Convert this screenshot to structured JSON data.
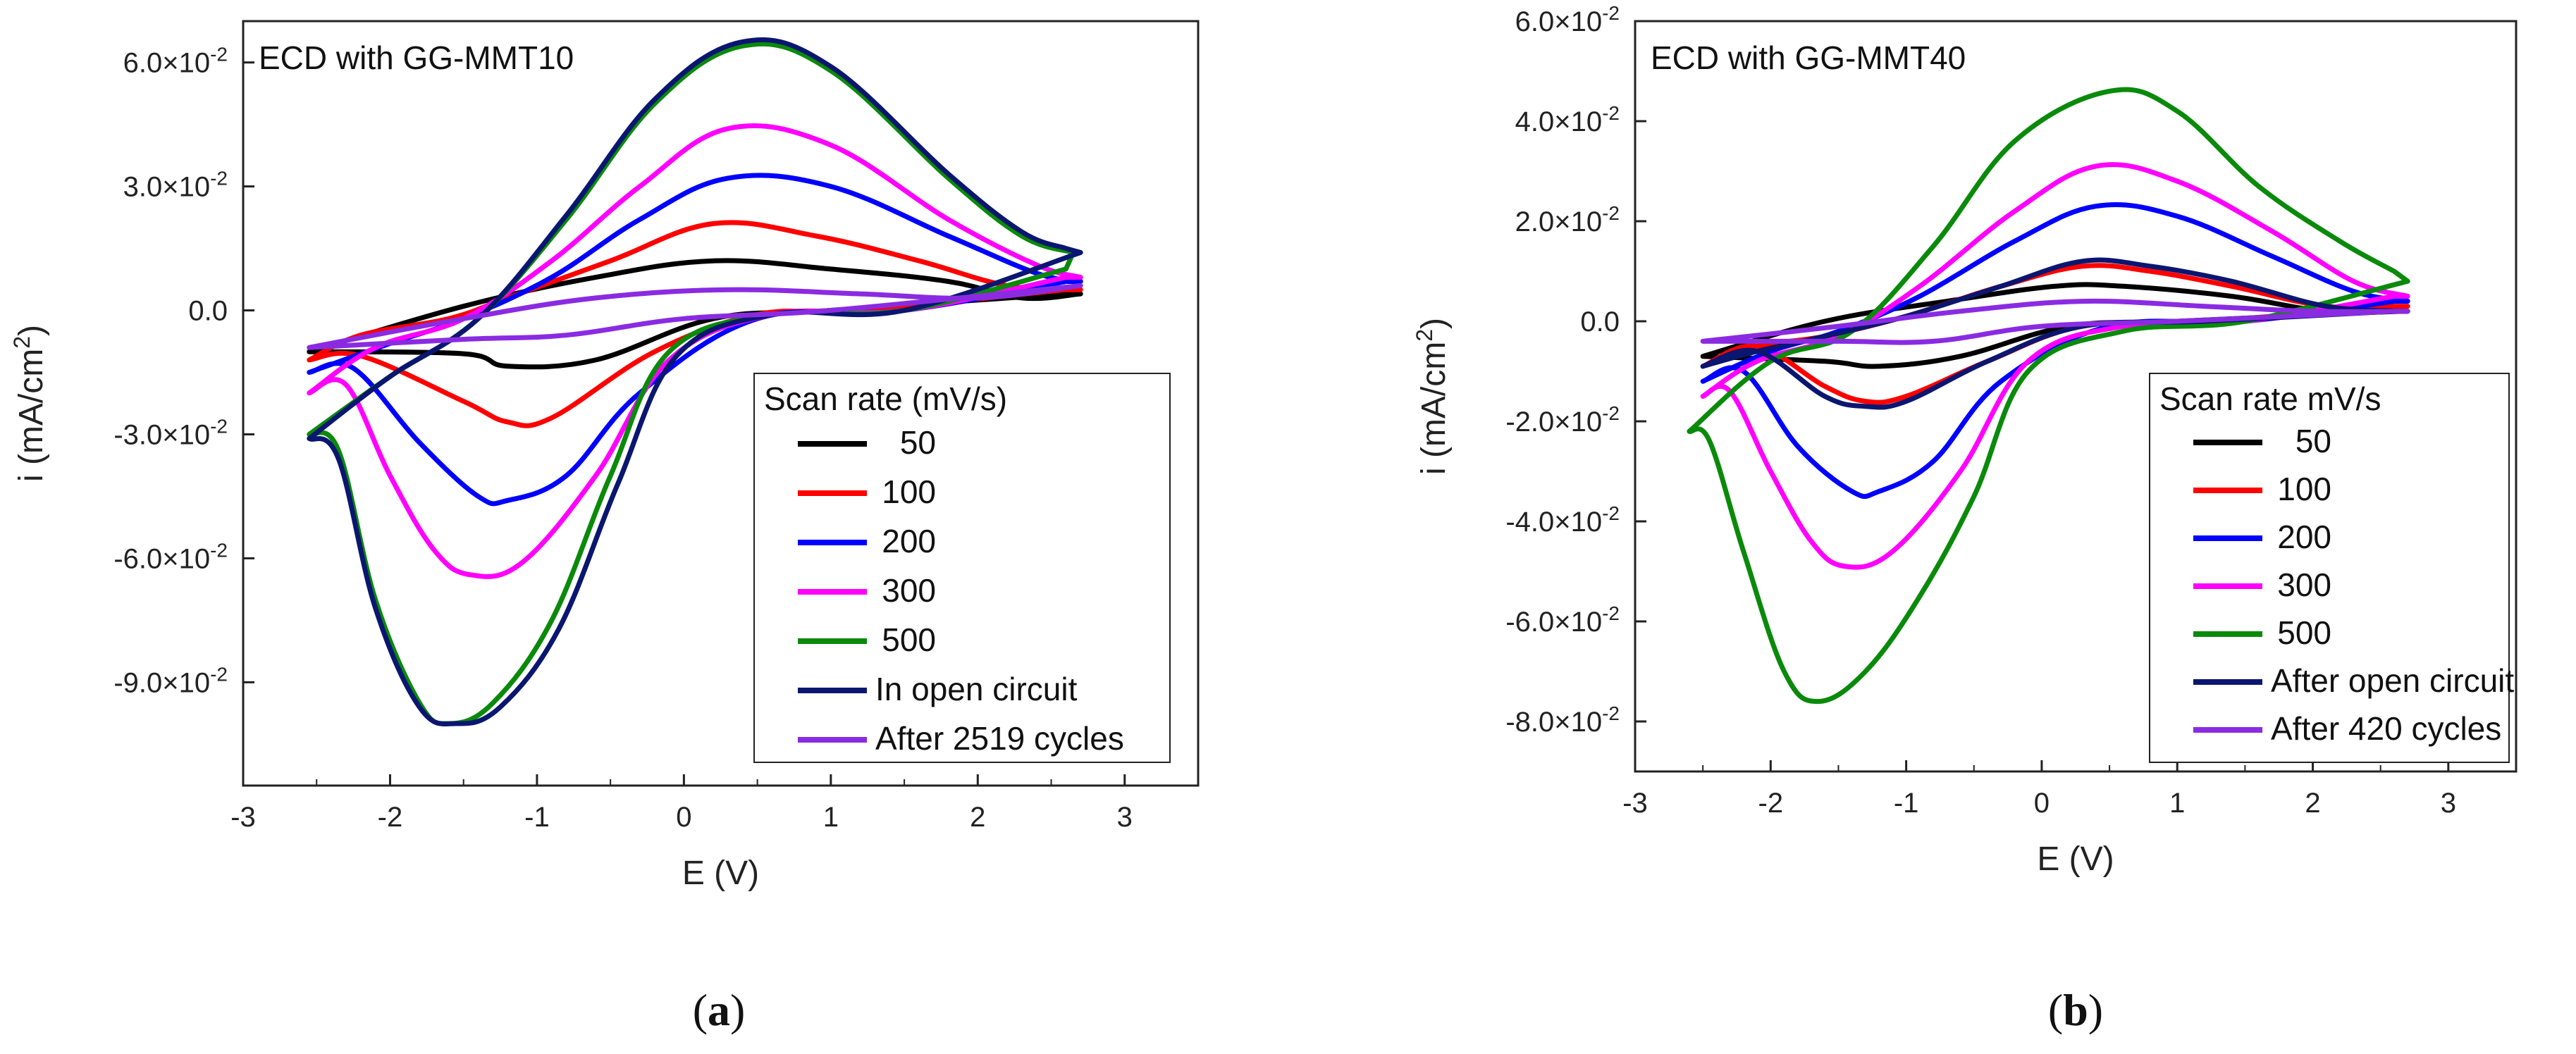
{
  "chart_data": [
    {
      "type": "line",
      "panel": "(a)",
      "panel_letter": "a",
      "title": "ECD with GG-MMT10",
      "xlabel": "E (V)",
      "ylabel_main": "i (mA/cm",
      "ylabel_sup": "2",
      "ylabel_end": ")",
      "xlim": [
        -3,
        3.5
      ],
      "ylim": [
        -0.115,
        0.07
      ],
      "x_ticks": [
        -3,
        -2,
        -1,
        0,
        1,
        2,
        3
      ],
      "x_tick_labels": [
        "-3",
        "-2",
        "-1",
        "0",
        "1",
        "2",
        "3"
      ],
      "y_ticks": [
        0.06,
        0.03,
        0.0,
        -0.03,
        -0.06,
        -0.09
      ],
      "y_tick_labels": [
        {
          "mantissa": "6.0×10",
          "exp": "-2"
        },
        {
          "mantissa": "3.0×10",
          "exp": "-2"
        },
        {
          "mantissa": "0.0",
          "exp": ""
        },
        {
          "mantissa": "-3.0×10",
          "exp": "-2"
        },
        {
          "mantissa": "-6.0×10",
          "exp": "-2"
        },
        {
          "mantissa": "-9.0×10",
          "exp": "-2"
        }
      ],
      "legend_title": "Scan rate (mV/s)",
      "series": [
        {
          "name": "50",
          "color": "#000000",
          "x_start": -2.55,
          "x_end": 2.7,
          "start_y": -0.01,
          "ox": [
            -2.55,
            -1.5,
            -1.2,
            -0.6,
            0.2,
            1.0,
            2.6
          ],
          "oy": [
            -0.01,
            -0.0105,
            -0.0135,
            -0.012,
            -0.002,
            0.0,
            0.004
          ],
          "rx": [
            2.7,
            2.3,
            1.8,
            1.0,
            0.2,
            -0.6,
            -1.5,
            -2.55
          ],
          "ry": [
            0.004,
            0.003,
            0.007,
            0.01,
            0.012,
            0.008,
            0.001,
            -0.01
          ]
        },
        {
          "name": "100",
          "color": "#ff0000",
          "x_start": -2.55,
          "x_end": 2.7,
          "start_y": -0.012,
          "ox": [
            -2.55,
            -2.2,
            -1.5,
            -1.2,
            -0.9,
            -0.2,
            0.5,
            1.2,
            2.6
          ],
          "oy": [
            -0.012,
            -0.011,
            -0.022,
            -0.027,
            -0.026,
            -0.01,
            -0.001,
            0.0,
            0.005
          ],
          "rx": [
            2.7,
            2.2,
            1.6,
            0.9,
            0.2,
            -0.5,
            -1.2,
            -1.6,
            -2.2,
            -2.55
          ],
          "ry": [
            0.005,
            0.006,
            0.012,
            0.018,
            0.021,
            0.012,
            0.003,
            -0.002,
            -0.006,
            -0.012
          ]
        },
        {
          "name": "200",
          "color": "#0000ff",
          "x_start": -2.55,
          "x_end": 2.7,
          "start_y": -0.015,
          "ox": [
            -2.55,
            -2.25,
            -1.8,
            -1.4,
            -1.2,
            -0.8,
            -0.3,
            0.5,
            1.5,
            2.6
          ],
          "oy": [
            -0.015,
            -0.014,
            -0.032,
            -0.045,
            -0.046,
            -0.04,
            -0.02,
            -0.002,
            0.0,
            0.007
          ],
          "rx": [
            2.7,
            2.4,
            1.8,
            1.0,
            0.3,
            -0.3,
            -0.9,
            -1.5,
            -2.0,
            -2.55
          ],
          "ry": [
            0.007,
            0.009,
            0.018,
            0.03,
            0.032,
            0.022,
            0.008,
            -0.002,
            -0.008,
            -0.015
          ]
        },
        {
          "name": "300",
          "color": "#ff00ff",
          "x_start": -2.55,
          "x_end": 2.7,
          "start_y": -0.02,
          "ox": [
            -2.55,
            -2.3,
            -2.0,
            -1.7,
            -1.45,
            -1.1,
            -0.6,
            -0.1,
            0.6,
            1.5,
            2.6
          ],
          "oy": [
            -0.02,
            -0.018,
            -0.04,
            -0.058,
            -0.064,
            -0.061,
            -0.04,
            -0.012,
            -0.001,
            0.0,
            0.008
          ],
          "rx": [
            2.7,
            2.4,
            1.8,
            1.0,
            0.3,
            -0.3,
            -0.9,
            -1.5,
            -2.1,
            -2.55
          ],
          "ry": [
            0.008,
            0.011,
            0.022,
            0.04,
            0.044,
            0.03,
            0.012,
            -0.002,
            -0.009,
            -0.02
          ]
        },
        {
          "name": "500",
          "color": "#0a8a0a",
          "x_start": -2.55,
          "x_end": 2.65,
          "start_y": -0.03,
          "ox": [
            -2.55,
            -2.35,
            -2.1,
            -1.8,
            -1.6,
            -1.3,
            -0.9,
            -0.5,
            -0.1,
            0.6,
            1.5,
            2.6
          ],
          "oy": [
            -0.03,
            -0.034,
            -0.07,
            -0.095,
            -0.1,
            -0.095,
            -0.075,
            -0.04,
            -0.01,
            -0.001,
            0.0,
            0.01
          ],
          "rx": [
            2.65,
            2.3,
            1.8,
            1.0,
            0.4,
            -0.2,
            -0.8,
            -1.4,
            -2.0,
            -2.55
          ],
          "ry": [
            0.014,
            0.018,
            0.032,
            0.058,
            0.064,
            0.05,
            0.022,
            -0.002,
            -0.016,
            -0.03
          ]
        },
        {
          "name": "In open circuit",
          "color": "#0a1670",
          "x_start": -2.55,
          "x_end": 2.7,
          "start_y": -0.031,
          "ox": [
            -2.55,
            -2.35,
            -2.1,
            -1.8,
            -1.55,
            -1.25,
            -0.85,
            -0.45,
            -0.05,
            0.6,
            1.5,
            2.7
          ],
          "oy": [
            -0.031,
            -0.036,
            -0.072,
            -0.096,
            -0.1,
            -0.096,
            -0.077,
            -0.042,
            -0.011,
            -0.001,
            0.0,
            0.014
          ],
          "rx": [
            2.6,
            2.3,
            1.8,
            1.0,
            0.4,
            -0.2,
            -0.8,
            -1.4,
            -2.0,
            -2.55
          ],
          "ry": [
            0.015,
            0.019,
            0.033,
            0.059,
            0.065,
            0.051,
            0.023,
            -0.002,
            -0.016,
            -0.031
          ]
        },
        {
          "name": "After 2519 cycles",
          "color": "#8a2be2",
          "x_start": -2.55,
          "x_end": 2.7,
          "start_y": -0.009,
          "ox": [
            -2.55,
            -1.5,
            -0.8,
            0.0,
            1.0,
            2.7
          ],
          "oy": [
            -0.009,
            -0.007,
            -0.006,
            -0.002,
            0.0,
            0.006
          ],
          "rx": [
            2.7,
            2.0,
            1.2,
            0.3,
            -0.6,
            -1.5,
            -2.55
          ],
          "ry": [
            0.006,
            0.003,
            0.004,
            0.005,
            0.003,
            -0.002,
            -0.009
          ]
        }
      ]
    },
    {
      "type": "line",
      "panel": "(b)",
      "panel_letter": "b",
      "title": "ECD with GG-MMT40",
      "xlabel": "E (V)",
      "ylabel_main": "i (mA/cm",
      "ylabel_sup": "2",
      "ylabel_end": ")",
      "xlim": [
        -3,
        3.5
      ],
      "ylim": [
        -0.09,
        0.06
      ],
      "x_ticks": [
        -3,
        -2,
        -1,
        0,
        1,
        2,
        3
      ],
      "x_tick_labels": [
        "-3",
        "-2",
        "-1",
        "0",
        "1",
        "2",
        "3"
      ],
      "y_ticks": [
        0.06,
        0.04,
        0.02,
        0.0,
        -0.02,
        -0.04,
        -0.06,
        -0.08
      ],
      "y_tick_labels": [
        {
          "mantissa": "6.0×10",
          "exp": "-2"
        },
        {
          "mantissa": "4.0×10",
          "exp": "-2"
        },
        {
          "mantissa": "2.0×10",
          "exp": "-2"
        },
        {
          "mantissa": "0.0",
          "exp": ""
        },
        {
          "mantissa": "-2.0×10",
          "exp": "-2"
        },
        {
          "mantissa": "-4.0×10",
          "exp": "-2"
        },
        {
          "mantissa": "-6.0×10",
          "exp": "-2"
        },
        {
          "mantissa": "-8.0×10",
          "exp": "-2"
        }
      ],
      "legend_title": "Scan rate mV/s",
      "series": [
        {
          "name": "50",
          "color": "#000000",
          "x_start": -2.5,
          "x_end": 2.7,
          "start_y": -0.007,
          "ox": [
            -2.5,
            -1.6,
            -1.2,
            -0.6,
            0.2,
            1.0,
            2.6
          ],
          "oy": [
            -0.007,
            -0.008,
            -0.009,
            -0.007,
            -0.001,
            0.0,
            0.002
          ],
          "rx": [
            2.7,
            2.1,
            1.4,
            0.6,
            0.1,
            -0.7,
            -1.6,
            -2.5
          ],
          "ry": [
            0.002,
            0.002,
            0.005,
            0.007,
            0.007,
            0.004,
            0.0,
            -0.007
          ]
        },
        {
          "name": "100",
          "color": "#ff0000",
          "x_start": -2.5,
          "x_end": 2.7,
          "start_y": -0.009,
          "ox": [
            -2.5,
            -2.1,
            -1.6,
            -1.3,
            -1.0,
            -0.4,
            0.3,
            1.2,
            2.6
          ],
          "oy": [
            -0.009,
            -0.005,
            -0.013,
            -0.016,
            -0.015,
            -0.008,
            -0.001,
            0.0,
            0.003
          ],
          "rx": [
            2.7,
            2.1,
            1.4,
            0.8,
            0.3,
            -0.3,
            -1.0,
            -1.6,
            -2.1,
            -2.5
          ],
          "ry": [
            0.003,
            0.003,
            0.007,
            0.01,
            0.011,
            0.007,
            0.001,
            -0.003,
            -0.005,
            -0.009
          ]
        },
        {
          "name": "200",
          "color": "#0000ff",
          "x_start": -2.5,
          "x_end": 2.7,
          "start_y": -0.012,
          "ox": [
            -2.5,
            -2.2,
            -1.8,
            -1.4,
            -1.2,
            -0.8,
            -0.3,
            0.5,
            1.5,
            2.6
          ],
          "oy": [
            -0.012,
            -0.01,
            -0.025,
            -0.034,
            -0.034,
            -0.028,
            -0.012,
            -0.001,
            0.0,
            0.004
          ],
          "rx": [
            2.7,
            2.3,
            1.7,
            1.0,
            0.4,
            -0.2,
            -0.9,
            -1.5,
            -2.0,
            -2.5
          ],
          "ry": [
            0.004,
            0.006,
            0.013,
            0.021,
            0.023,
            0.016,
            0.005,
            -0.002,
            -0.006,
            -0.012
          ]
        },
        {
          "name": "300",
          "color": "#ff00ff",
          "x_start": -2.5,
          "x_end": 2.7,
          "start_y": -0.015,
          "ox": [
            -2.5,
            -2.3,
            -2.0,
            -1.7,
            -1.45,
            -1.1,
            -0.6,
            -0.1,
            0.6,
            1.5,
            2.6
          ],
          "oy": [
            -0.015,
            -0.014,
            -0.03,
            -0.044,
            -0.049,
            -0.046,
            -0.03,
            -0.008,
            -0.001,
            0.0,
            0.005
          ],
          "rx": [
            2.7,
            2.3,
            1.7,
            1.0,
            0.4,
            -0.2,
            -0.9,
            -1.5,
            -2.1,
            -2.5
          ],
          "ry": [
            0.005,
            0.008,
            0.018,
            0.028,
            0.031,
            0.022,
            0.007,
            -0.003,
            -0.008,
            -0.015
          ]
        },
        {
          "name": "500",
          "color": "#0a8a0a",
          "x_start": -2.6,
          "x_end": 2.7,
          "start_y": -0.022,
          "ox": [
            -2.6,
            -2.45,
            -2.2,
            -1.9,
            -1.65,
            -1.3,
            -0.9,
            -0.5,
            -0.1,
            0.6,
            1.5,
            2.7
          ],
          "oy": [
            -0.022,
            -0.024,
            -0.046,
            -0.07,
            -0.076,
            -0.07,
            -0.055,
            -0.035,
            -0.01,
            -0.002,
            0.0,
            0.008
          ],
          "rx": [
            2.6,
            2.2,
            1.6,
            1.0,
            0.5,
            -0.2,
            -0.8,
            -1.4,
            -2.0,
            -2.6
          ],
          "ry": [
            0.01,
            0.016,
            0.027,
            0.042,
            0.046,
            0.036,
            0.015,
            -0.002,
            -0.008,
            -0.022
          ]
        },
        {
          "name": "After open circuit",
          "color": "#0a1670",
          "x_start": -2.5,
          "x_end": 2.7,
          "start_y": -0.009,
          "ox": [
            -2.5,
            -2.1,
            -1.6,
            -1.3,
            -1.0,
            -0.4,
            0.3,
            1.2,
            2.6
          ],
          "oy": [
            -0.009,
            -0.006,
            -0.015,
            -0.017,
            -0.016,
            -0.008,
            -0.001,
            0.0,
            0.002
          ],
          "rx": [
            2.7,
            2.1,
            1.4,
            0.8,
            0.3,
            -0.3,
            -1.0,
            -1.6,
            -2.1,
            -2.5
          ],
          "ry": [
            0.002,
            0.003,
            0.008,
            0.011,
            0.012,
            0.007,
            0.001,
            -0.003,
            -0.006,
            -0.009
          ]
        },
        {
          "name": "After 420 cycles",
          "color": "#8a2be2",
          "x_start": -2.5,
          "x_end": 2.7,
          "start_y": -0.004,
          "ox": [
            -2.5,
            -1.5,
            -0.8,
            0.0,
            1.0,
            2.6
          ],
          "oy": [
            -0.004,
            -0.004,
            -0.004,
            -0.001,
            0.0,
            0.002
          ],
          "rx": [
            2.7,
            2.0,
            1.2,
            0.3,
            -0.6,
            -1.5,
            -2.5
          ],
          "ry": [
            0.002,
            0.002,
            0.003,
            0.004,
            0.002,
            -0.001,
            -0.004
          ]
        }
      ]
    }
  ]
}
